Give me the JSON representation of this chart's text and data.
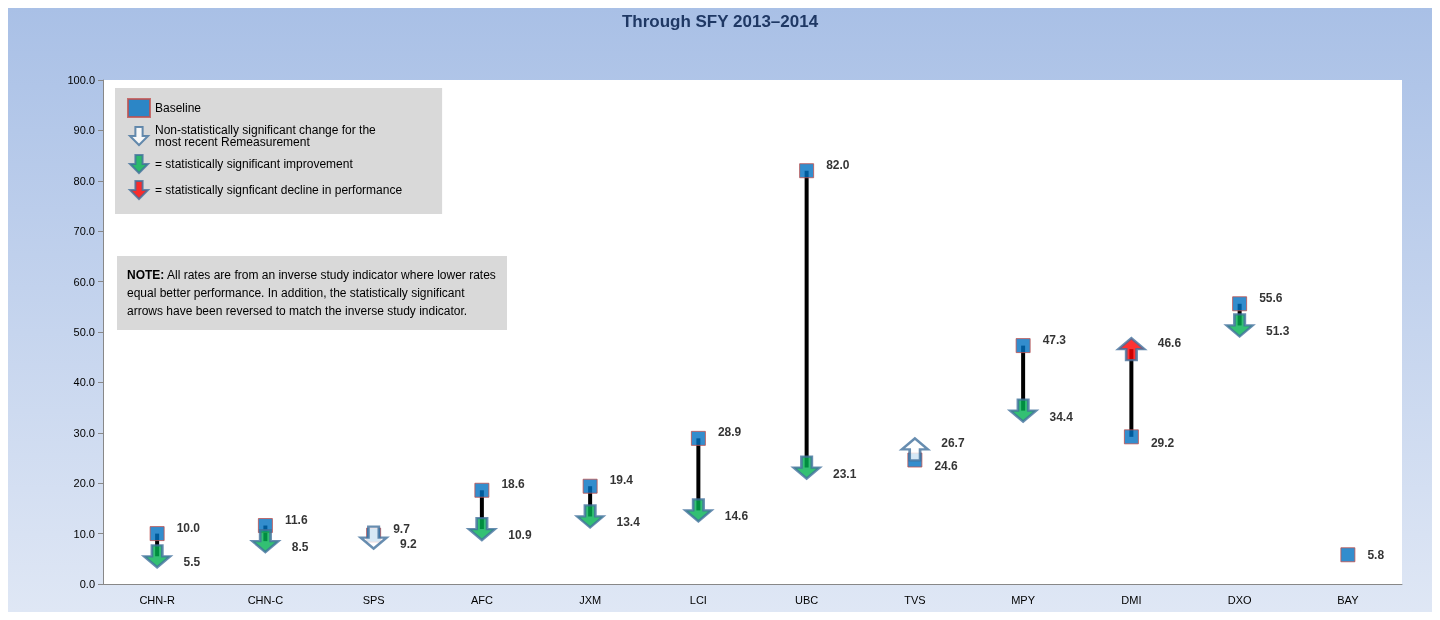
{
  "chart_data": {
    "type": "scatter",
    "title": "Through SFY 2013–2014",
    "categories": [
      "CHN-R",
      "CHN-C",
      "SPS",
      "AFC",
      "JXM",
      "LCI",
      "UBC",
      "TVS",
      "MPY",
      "DMI",
      "DXO",
      "BAY"
    ],
    "series": [
      {
        "name": "Baseline",
        "color": "#0070c0",
        "marker": "square",
        "values": [
          10.0,
          11.6,
          9.7,
          18.6,
          19.4,
          28.9,
          82.0,
          24.6,
          47.3,
          29.2,
          55.6,
          5.8
        ],
        "value_labels": [
          "10.0",
          "11.6",
          "9.7",
          "18.6",
          "19.4",
          "28.9",
          "82.0",
          "24.6",
          "47.3",
          "29.2",
          "55.6",
          "5.8"
        ]
      },
      {
        "name": "Non-statistically significant change for the most recent Remeasurement",
        "color": "#ffffff",
        "marker": "triangle",
        "values": [
          null,
          null,
          9.2,
          null,
          null,
          null,
          null,
          26.7,
          null,
          null,
          null,
          null
        ],
        "value_labels": [
          null,
          null,
          "9.2",
          null,
          null,
          null,
          null,
          "26.7",
          null,
          null,
          null,
          null
        ]
      },
      {
        "name": "= statistically significant improvement",
        "color": "#00b050",
        "marker": "triangle",
        "line_style": "solid",
        "values": [
          5.5,
          8.5,
          null,
          10.9,
          13.4,
          14.6,
          23.1,
          null,
          34.4,
          null,
          51.3,
          null
        ],
        "value_labels": [
          "5.5",
          "8.5",
          null,
          "10.9",
          "13.4",
          "14.6",
          "23.1",
          null,
          "34.4",
          null,
          "51.3",
          null
        ]
      },
      {
        "name": "= statistically signficant decline in performance",
        "color": "#ff0000",
        "marker": "triangle",
        "line_style": "solid",
        "values": [
          null,
          null,
          null,
          null,
          null,
          null,
          null,
          null,
          null,
          46.6,
          null,
          null
        ],
        "value_labels": [
          null,
          null,
          null,
          null,
          null,
          null,
          null,
          null,
          null,
          "46.6",
          null,
          null
        ]
      }
    ],
    "ylim": [
      0,
      100
    ],
    "yticks": [
      {
        "value": 0,
        "label": "0.0"
      },
      {
        "value": 10,
        "label": "10.0"
      },
      {
        "value": 20,
        "label": "20.0"
      },
      {
        "value": 30,
        "label": "30.0"
      },
      {
        "value": 40,
        "label": "40.0"
      },
      {
        "value": 50,
        "label": "50.0"
      },
      {
        "value": 60,
        "label": "60.0"
      },
      {
        "value": 70,
        "label": "70.0"
      },
      {
        "value": 80,
        "label": "80.0"
      },
      {
        "value": 90,
        "label": "90.0"
      },
      {
        "value": 100,
        "label": "100.0"
      }
    ],
    "grid": false,
    "legend": "top left",
    "annotations": [
      "NOTE: All rates are from an inverse study indicator where lower rates equal better performance. In addition, the statistically significant arrows have been reversed to match the inverse study indicator."
    ]
  }
}
